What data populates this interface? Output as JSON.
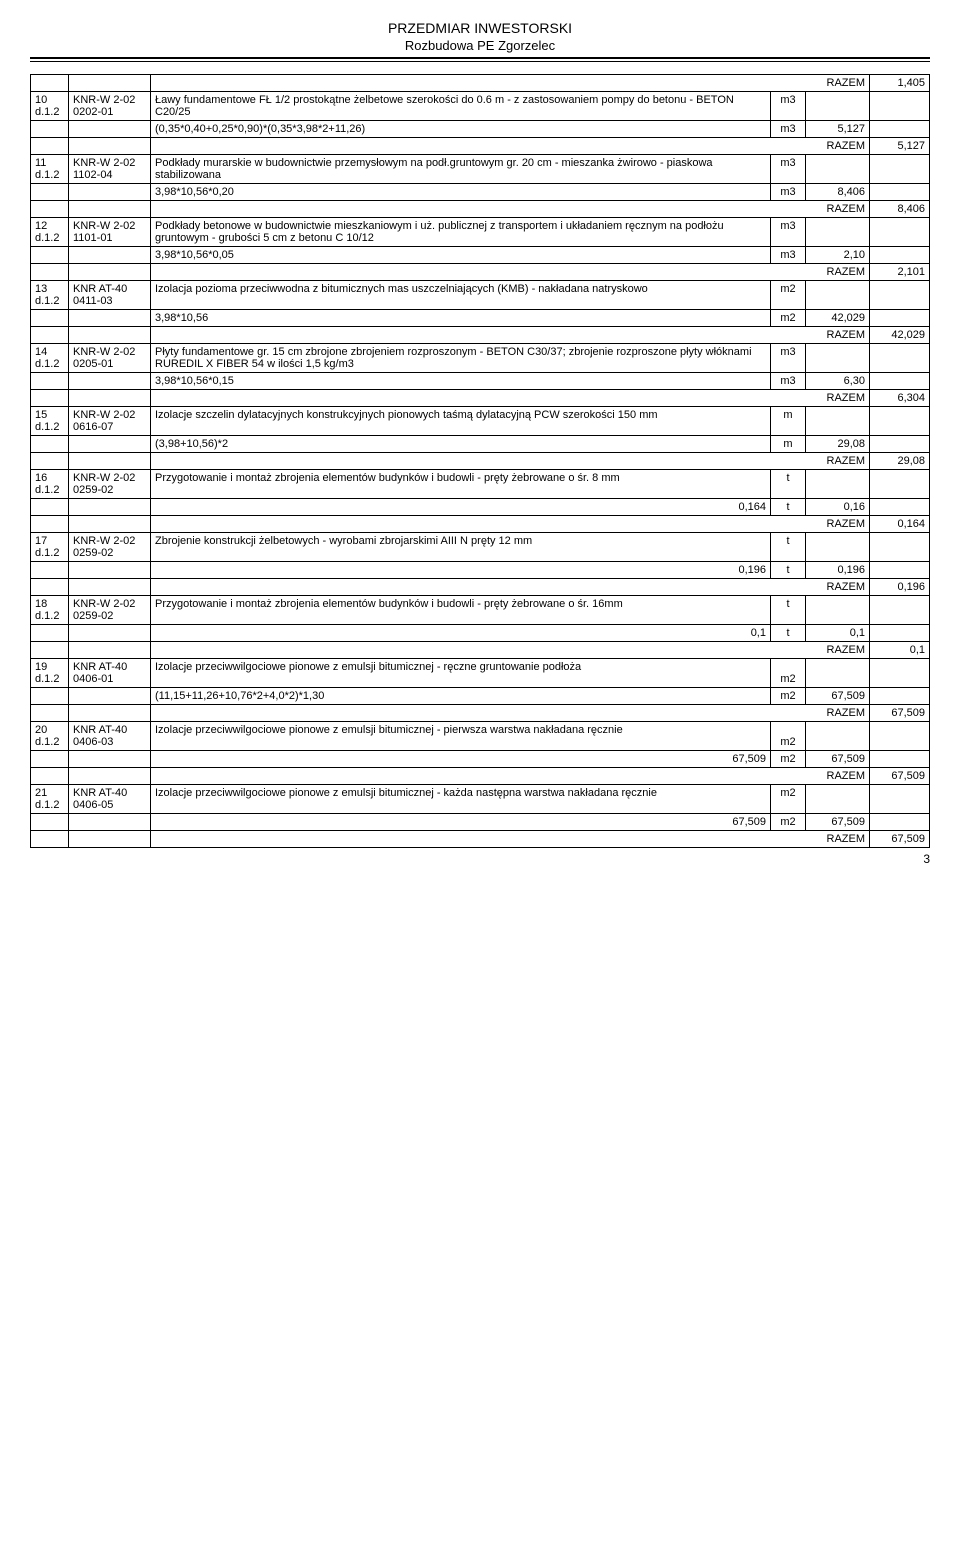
{
  "header": {
    "title": "PRZEDMIAR INWESTORSKI",
    "subtitle": "Rozbudowa PE Zgorzelec"
  },
  "razem_label": "RAZEM",
  "page_number": "3",
  "rows": [
    {
      "type": "razem",
      "value": "1,405"
    },
    {
      "type": "item",
      "num": "10 d.1.2",
      "code": "KNR-W 2-02 0202-01",
      "desc": "Ławy fundamentowe FŁ 1/2 prostokątne żelbetowe szerokości do 0.6 m - z zastosowaniem pompy do betonu  - BETON C20/25",
      "unit": "m3"
    },
    {
      "type": "calc",
      "desc": "(0,35*0,40+0,25*0,90)*(0,35*3,98*2+11,26)",
      "unit": "m3",
      "qty": "5,127"
    },
    {
      "type": "razem",
      "value": "5,127"
    },
    {
      "type": "item",
      "num": "11 d.1.2",
      "code": "KNR-W 2-02 1102-04",
      "desc": "Podkłady murarskie w budownictwie przemysłowym  na podł.gruntowym gr. 20 cm - mieszanka żwirowo - piaskowa stabilizowana",
      "unit": "m3"
    },
    {
      "type": "calc",
      "desc": "3,98*10,56*0,20",
      "unit": "m3",
      "qty": "8,406"
    },
    {
      "type": "razem",
      "value": "8,406"
    },
    {
      "type": "item",
      "num": "12 d.1.2",
      "code": "KNR-W 2-02 1101-01",
      "desc": "Podkłady betonowe w budownictwie mieszkaniowym i uż. publicznej z transportem i układaniem ręcznym na podłożu gruntowym - grubości 5 cm z betonu C 10/12",
      "unit": "m3"
    },
    {
      "type": "calc",
      "desc": "3,98*10,56*0,05",
      "unit": "m3",
      "qty": "2,10"
    },
    {
      "type": "razem",
      "value": "2,101"
    },
    {
      "type": "item",
      "num": "13 d.1.2",
      "code": "KNR AT-40 0411-03",
      "desc": "Izolacja pozioma przeciwwodna z bitumicznych mas uszczelniających (KMB) - nakładana natryskowo",
      "unit": "m2"
    },
    {
      "type": "calc",
      "desc": "3,98*10,56",
      "unit": "m2",
      "qty": "42,029"
    },
    {
      "type": "razem",
      "value": "42,029"
    },
    {
      "type": "item",
      "num": "14 d.1.2",
      "code": "KNR-W 2-02 0205-01",
      "desc": "Płyty fundamentowe gr. 15 cm zbrojone zbrojeniem rozproszonym  - BETON C30/37; zbrojenie rozproszone płyty włóknami RUREDIL X FIBER 54 w ilości 1,5 kg/m3",
      "unit": "m3"
    },
    {
      "type": "calc",
      "desc": "3,98*10,56*0,15",
      "unit": "m3",
      "qty": "6,30"
    },
    {
      "type": "razem",
      "value": "6,304"
    },
    {
      "type": "item",
      "num": "15 d.1.2",
      "code": "KNR-W 2-02 0616-07",
      "desc": "Izolacje szczelin dylatacyjnych konstrukcyjnych pionowych taśmą dylatacyjną PCW szerokości 150 mm",
      "unit": "m"
    },
    {
      "type": "calc",
      "desc": "(3,98+10,56)*2",
      "unit": "m",
      "qty": "29,08"
    },
    {
      "type": "razem",
      "value": "29,08"
    },
    {
      "type": "item",
      "num": "16 d.1.2",
      "code": "KNR-W 2-02 0259-02",
      "desc": "Przygotowanie i montaż zbrojenia elementów budynków i budowli - pręty żebrowane o śr. 8 mm",
      "unit": "t"
    },
    {
      "type": "calc",
      "desc": "0,164",
      "unit": "t",
      "qty": "0,16"
    },
    {
      "type": "razem",
      "value": "0,164"
    },
    {
      "type": "item",
      "num": "17 d.1.2",
      "code": "KNR-W 2-02 0259-02",
      "desc": "Zbrojenie konstrukcji żelbetowych - wyrobami zbrojarskimi AIII N  pręty 12 mm",
      "unit": "t"
    },
    {
      "type": "calc",
      "desc": "0,196",
      "unit": "t",
      "qty": "0,196"
    },
    {
      "type": "razem",
      "value": "0,196"
    },
    {
      "type": "item",
      "num": "18 d.1.2",
      "code": "KNR-W 2-02 0259-02",
      "desc": "Przygotowanie i montaż zbrojenia elementów budynków i budowli - pręty żebrowane o śr. 16mm",
      "unit": "t"
    },
    {
      "type": "calc",
      "desc": "0,1",
      "unit": "t",
      "qty": "0,1"
    },
    {
      "type": "razem",
      "value": "0,1"
    },
    {
      "type": "item",
      "num": "19 d.1.2",
      "code": "KNR AT-40 0406-01",
      "desc": "Izolacje przeciwwilgociowe pionowe z emulsji bitumicznej - ręczne gruntowanie podłoża",
      "unit": "m2",
      "unit_below": true
    },
    {
      "type": "calc",
      "desc": "(11,15+11,26+10,76*2+4,0*2)*1,30",
      "unit": "m2",
      "qty": "67,509"
    },
    {
      "type": "razem",
      "value": "67,509"
    },
    {
      "type": "item",
      "num": "20 d.1.2",
      "code": "KNR AT-40 0406-03",
      "desc": "Izolacje przeciwwilgociowe pionowe z emulsji bitumicznej - pierwsza warstwa nakładana ręcznie",
      "unit": "m2",
      "unit_below": true
    },
    {
      "type": "calc",
      "desc": "67,509",
      "unit": "m2",
      "qty": "67,509"
    },
    {
      "type": "razem",
      "value": "67,509"
    },
    {
      "type": "item",
      "num": "21 d.1.2",
      "code": "KNR AT-40 0406-05",
      "desc": "Izolacje przeciwwilgociowe pionowe z emulsji bitumicznej - każda następna warstwa nakładana ręcznie",
      "unit": "m2"
    },
    {
      "type": "calc",
      "desc": "67,509",
      "unit": "m2",
      "qty": "67,509"
    },
    {
      "type": "razem",
      "value": "67,509"
    }
  ]
}
